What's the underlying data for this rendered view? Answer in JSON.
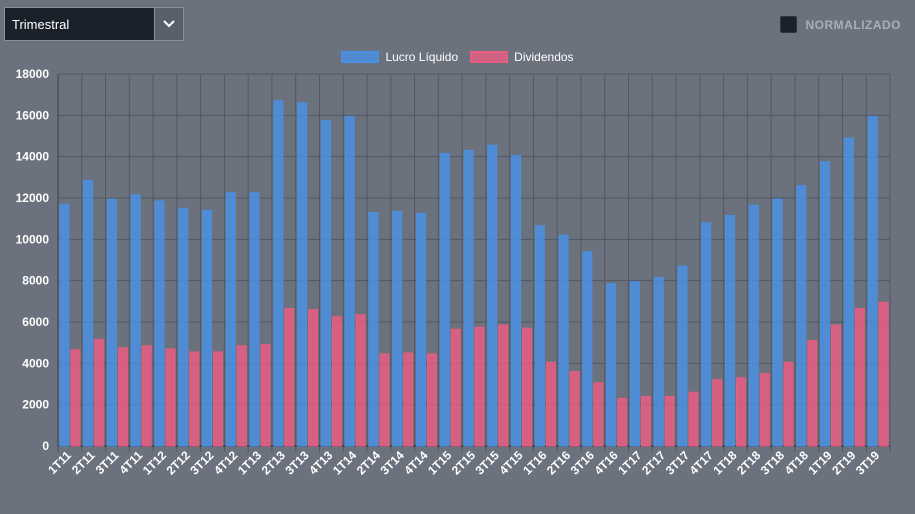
{
  "controls": {
    "period_value": "Trimestral",
    "normalize_label": "NORMALIZADO"
  },
  "chart_data": {
    "type": "bar",
    "title": "",
    "xlabel": "",
    "ylabel": "",
    "ylim": [
      0,
      18000
    ],
    "yticks": [
      0,
      2000,
      4000,
      6000,
      8000,
      10000,
      12000,
      14000,
      16000,
      18000
    ],
    "grid": true,
    "legend_position": "top-center",
    "categories": [
      "1T11",
      "2T11",
      "3T11",
      "4T11",
      "1T12",
      "2T12",
      "3T12",
      "4T12",
      "1T13",
      "2T13",
      "3T13",
      "4T13",
      "1T14",
      "2T14",
      "3T14",
      "4T14",
      "1T15",
      "2T15",
      "3T15",
      "4T15",
      "1T16",
      "2T16",
      "3T16",
      "4T16",
      "1T17",
      "2T17",
      "3T17",
      "4T17",
      "1T18",
      "2T18",
      "3T18",
      "4T18",
      "1T19",
      "2T19",
      "3T19"
    ],
    "series": [
      {
        "name": "Lucro Líquido",
        "color": "#4a90e2",
        "values": [
          11700,
          12850,
          11950,
          12150,
          11850,
          11500,
          11400,
          12250,
          12250,
          16700,
          16600,
          15750,
          15950,
          11300,
          11350,
          11250,
          14150,
          14300,
          14550,
          14050,
          10650,
          10200,
          9400,
          7850,
          7950,
          8150,
          8700,
          10800,
          11150,
          11650,
          11950,
          12600,
          13750,
          14900,
          15950
        ]
      },
      {
        "name": "Dividendos",
        "color": "#e85d82",
        "values": [
          4650,
          5150,
          4750,
          4850,
          4700,
          4550,
          4550,
          4850,
          4900,
          6650,
          6600,
          6250,
          6350,
          4450,
          4500,
          4450,
          5650,
          5750,
          5850,
          5700,
          4050,
          3600,
          3050,
          2300,
          2400,
          2400,
          2600,
          3200,
          3300,
          3500,
          4050,
          5100,
          5850,
          6650,
          6950
        ]
      }
    ]
  }
}
